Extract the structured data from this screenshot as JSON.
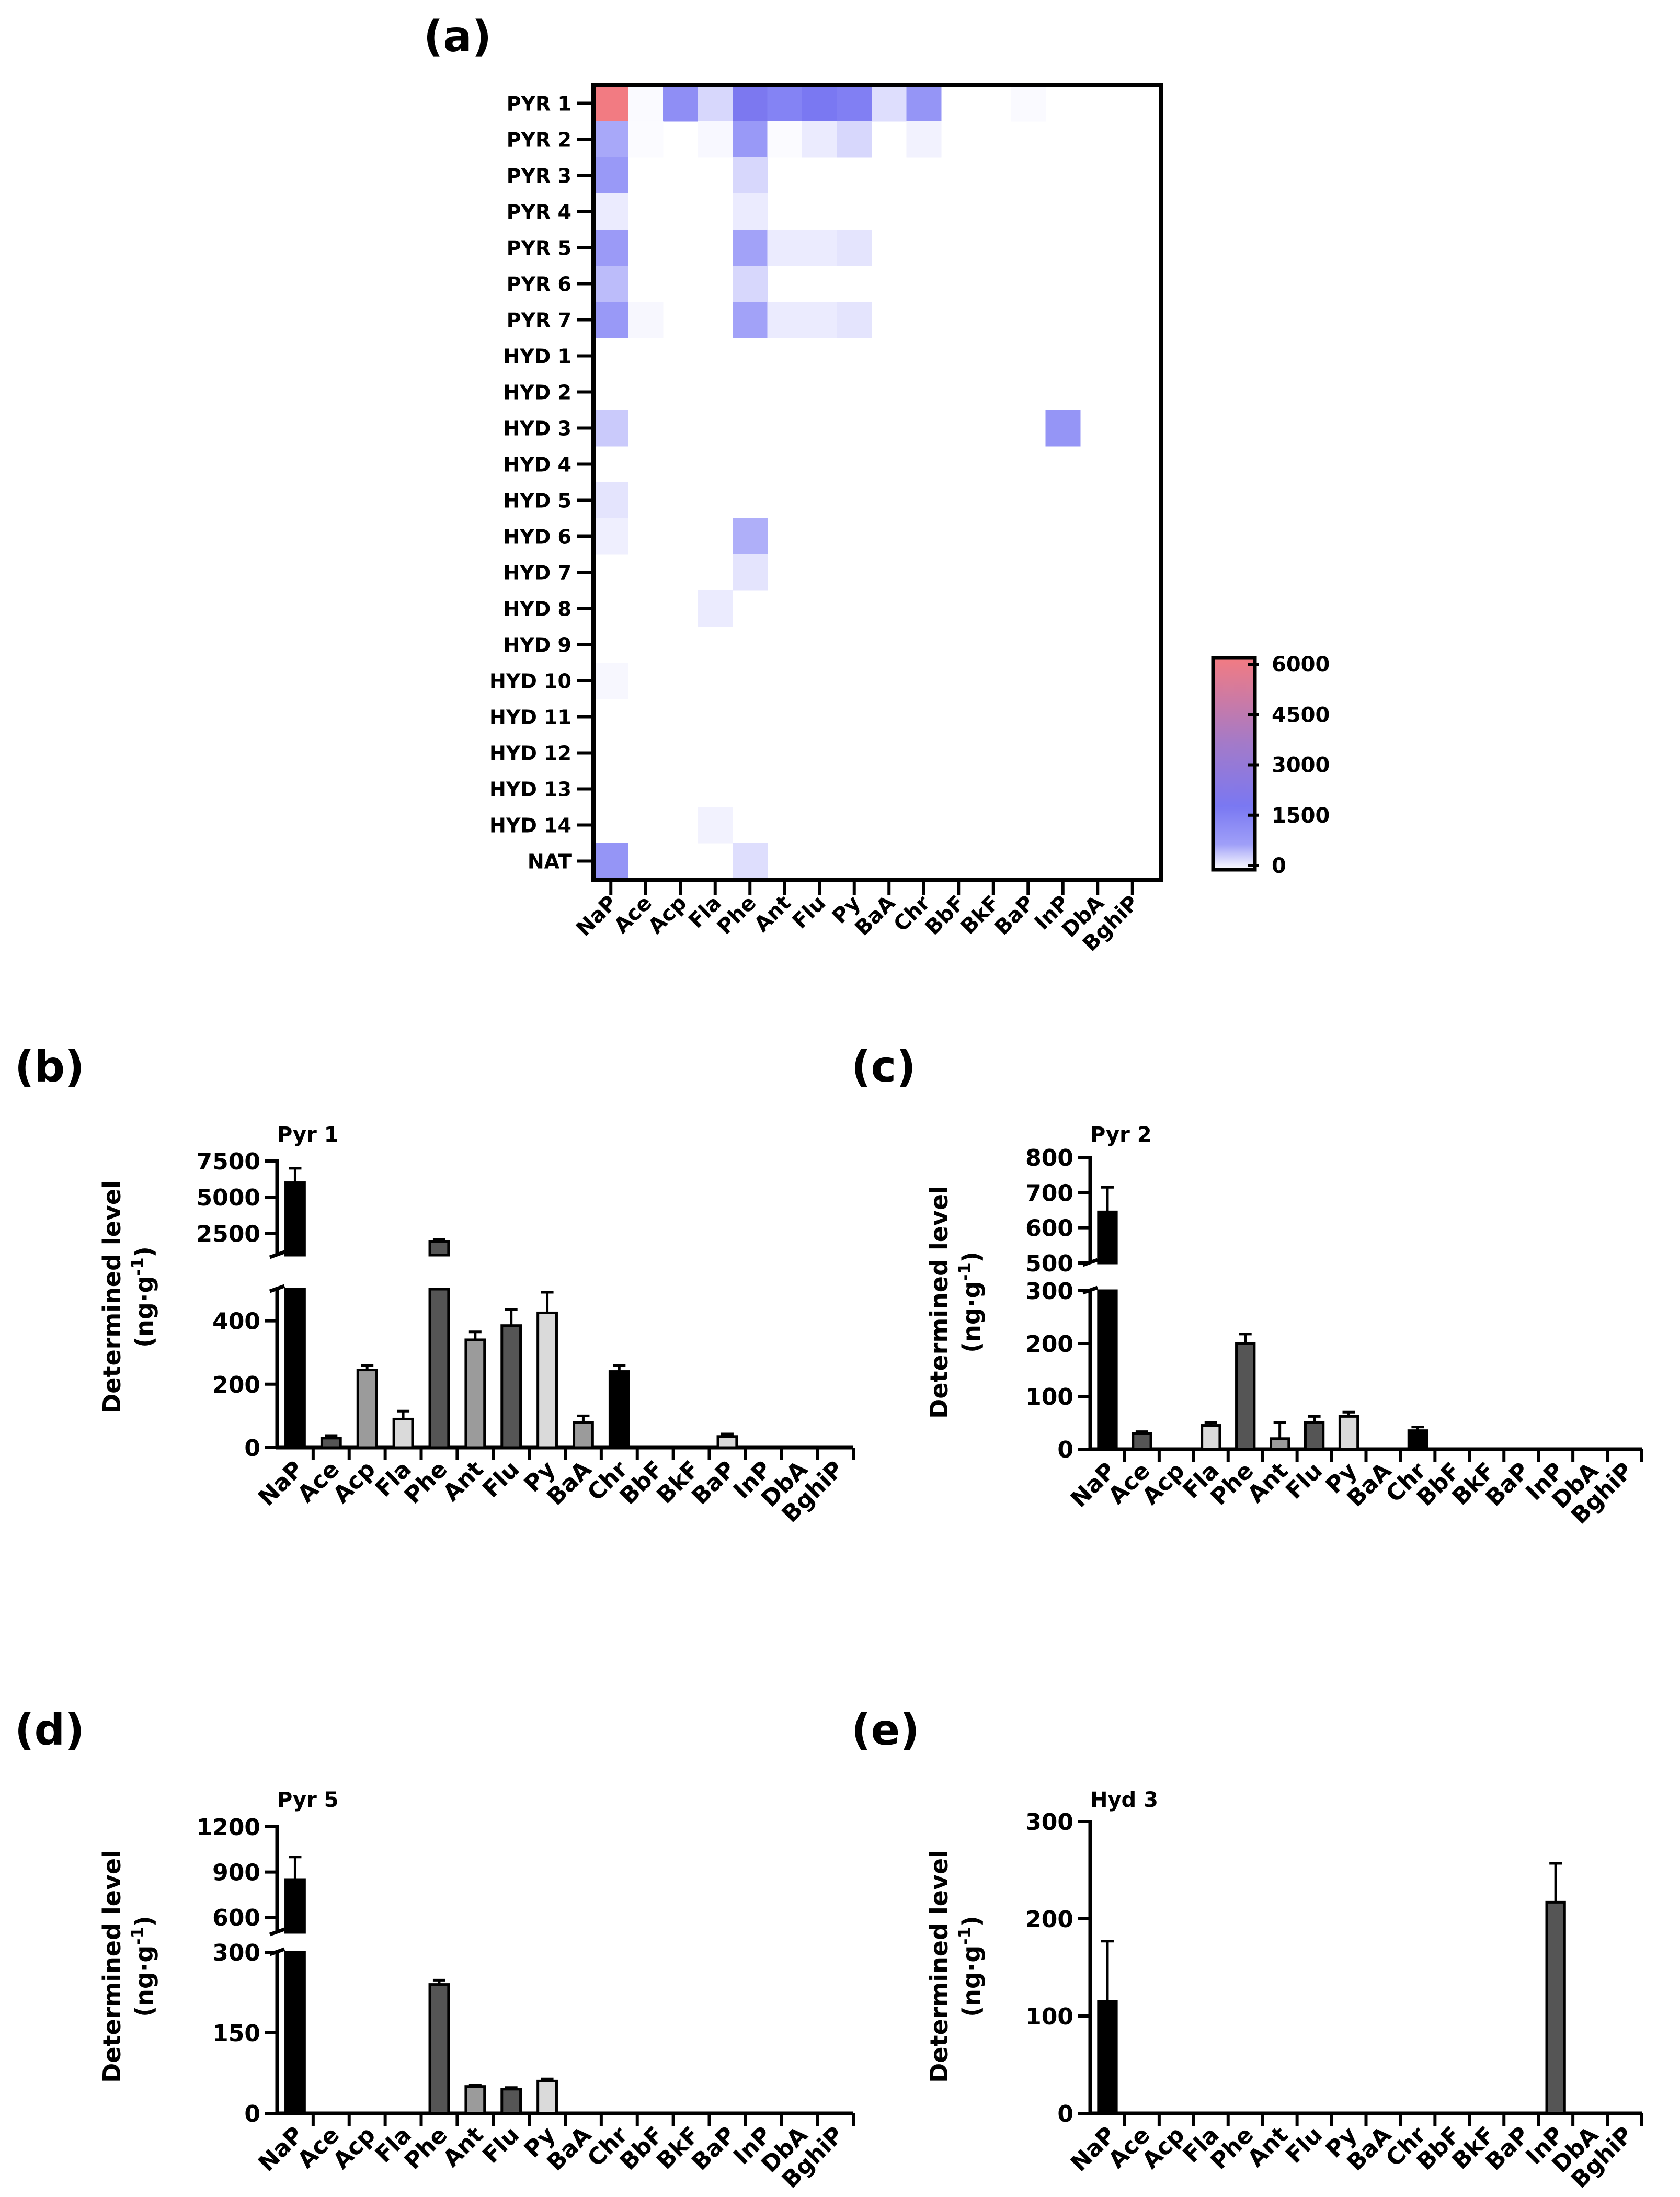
{
  "chart_data": [
    {
      "panel": "(a)",
      "type": "heatmap",
      "rows": [
        "PYR 1",
        "PYR 2",
        "PYR 3",
        "PYR 4",
        "PYR 5",
        "PYR 6",
        "PYR 7",
        "HYD 1",
        "HYD 2",
        "HYD 3",
        "HYD 4",
        "HYD 5",
        "HYD 6",
        "HYD 7",
        "HYD 8",
        "HYD 9",
        "HYD 10",
        "HYD 11",
        "HYD 12",
        "HYD 13",
        "HYD 14",
        "NAT"
      ],
      "columns": [
        "NaP",
        "Ace",
        "Acp",
        "Fla",
        "Phe",
        "Ant",
        "Flu",
        "Py",
        "BaA",
        "Chr",
        "BbF",
        "BkF",
        "BaP",
        "InP",
        "DbA",
        "BghiP"
      ],
      "values": [
        [
          6000,
          40,
          1200,
          300,
          1900,
          1500,
          1800,
          1600,
          250,
          1000,
          0,
          0,
          40,
          0,
          0,
          0
        ],
        [
          650,
          30,
          0,
          50,
          900,
          30,
          150,
          300,
          0,
          100,
          0,
          0,
          0,
          0,
          0,
          0
        ],
        [
          900,
          0,
          0,
          0,
          300,
          0,
          0,
          0,
          0,
          0,
          0,
          0,
          0,
          0,
          0,
          0
        ],
        [
          150,
          0,
          0,
          0,
          150,
          0,
          0,
          0,
          0,
          0,
          0,
          0,
          0,
          0,
          0,
          0
        ],
        [
          850,
          0,
          0,
          0,
          700,
          150,
          150,
          200,
          0,
          0,
          0,
          0,
          0,
          0,
          0,
          0
        ],
        [
          500,
          0,
          0,
          0,
          300,
          0,
          0,
          0,
          0,
          0,
          0,
          0,
          0,
          0,
          0,
          0
        ],
        [
          900,
          60,
          0,
          0,
          700,
          150,
          150,
          200,
          0,
          0,
          0,
          0,
          0,
          0,
          0,
          0
        ],
        [
          0,
          0,
          0,
          0,
          0,
          0,
          0,
          0,
          0,
          0,
          0,
          0,
          0,
          0,
          0,
          0
        ],
        [
          0,
          0,
          0,
          0,
          0,
          0,
          0,
          0,
          0,
          0,
          0,
          0,
          0,
          0,
          0,
          0
        ],
        [
          400,
          0,
          0,
          0,
          0,
          0,
          0,
          0,
          0,
          0,
          0,
          0,
          0,
          1000,
          0,
          0
        ],
        [
          0,
          0,
          0,
          0,
          0,
          0,
          0,
          0,
          0,
          0,
          0,
          0,
          0,
          0,
          0,
          0
        ],
        [
          200,
          0,
          0,
          0,
          0,
          0,
          0,
          0,
          0,
          0,
          0,
          0,
          0,
          0,
          0,
          0
        ],
        [
          120,
          0,
          0,
          0,
          600,
          0,
          0,
          0,
          0,
          0,
          0,
          0,
          0,
          0,
          0,
          0
        ],
        [
          0,
          0,
          0,
          0,
          200,
          0,
          0,
          0,
          0,
          0,
          0,
          0,
          0,
          0,
          0,
          0
        ],
        [
          0,
          0,
          0,
          150,
          0,
          0,
          0,
          0,
          0,
          0,
          0,
          0,
          0,
          0,
          0,
          0
        ],
        [
          0,
          0,
          0,
          0,
          0,
          0,
          0,
          0,
          0,
          0,
          0,
          0,
          0,
          0,
          0,
          0
        ],
        [
          60,
          0,
          0,
          0,
          0,
          0,
          0,
          0,
          0,
          0,
          0,
          0,
          0,
          0,
          0,
          0
        ],
        [
          0,
          0,
          0,
          0,
          0,
          0,
          0,
          0,
          0,
          0,
          0,
          0,
          0,
          0,
          0,
          0
        ],
        [
          0,
          0,
          0,
          0,
          0,
          0,
          0,
          0,
          0,
          0,
          0,
          0,
          0,
          0,
          0,
          0
        ],
        [
          0,
          0,
          0,
          0,
          0,
          0,
          0,
          0,
          0,
          0,
          0,
          0,
          0,
          0,
          0,
          0
        ],
        [
          0,
          0,
          0,
          100,
          0,
          0,
          0,
          0,
          0,
          0,
          0,
          0,
          0,
          0,
          0,
          0
        ],
        [
          1000,
          0,
          0,
          0,
          250,
          0,
          0,
          0,
          0,
          0,
          0,
          0,
          0,
          0,
          0,
          0
        ]
      ],
      "colorbar": {
        "min": 0,
        "max": 6000,
        "ticks": [
          "0",
          "1500",
          "3000",
          "4500",
          "6000"
        ],
        "colors": [
          "#ffffff",
          "#6e6ef5",
          "#f27b82"
        ]
      }
    },
    {
      "panel": "(b)",
      "type": "bar",
      "title": "Pyr 1",
      "ylabel": "Determined level",
      "yunit": "(ng·g",
      "yunit_sup": "-1",
      "yunit_end": ")",
      "categories": [
        "NaP",
        "Ace",
        "Acp",
        "Fla",
        "Phe",
        "Ant",
        "Flu",
        "Py",
        "BaA",
        "Chr",
        "BbF",
        "BkF",
        "BaP",
        "InP",
        "DbA",
        "BghiP"
      ],
      "values": [
        6000,
        30,
        245,
        90,
        1950,
        340,
        385,
        425,
        80,
        240,
        0,
        0,
        35,
        0,
        0,
        0
      ],
      "errors": [
        1000,
        8,
        15,
        25,
        150,
        25,
        50,
        65,
        20,
        20,
        0,
        0,
        8,
        0,
        0,
        0
      ],
      "colors": [
        "#000000",
        "#555555",
        "#9b9b9b",
        "#dadada",
        "#555555",
        "#9b9b9b",
        "#555555",
        "#dadada",
        "#9b9b9b",
        "#000000",
        "#555555",
        "#9b9b9b",
        "#dadada",
        "#555555",
        "#9b9b9b",
        "#dadada"
      ],
      "axis_break": {
        "lower": [
          0,
          500
        ],
        "upper": [
          1000,
          7500
        ]
      },
      "yticks_lower": [
        "0",
        "200",
        "400"
      ],
      "yticks_upper": [
        "2500",
        "5000",
        "7500"
      ]
    },
    {
      "panel": "(c)",
      "type": "bar",
      "title": "Pyr 2",
      "ylabel": "Determined level",
      "yunit": "(ng·g",
      "yunit_sup": "-1",
      "yunit_end": ")",
      "categories": [
        "NaP",
        "Ace",
        "Acp",
        "Fla",
        "Phe",
        "Ant",
        "Flu",
        "Py",
        "BaA",
        "Chr",
        "BbF",
        "BkF",
        "BaP",
        "InP",
        "DbA",
        "BghiP"
      ],
      "values": [
        645,
        30,
        0,
        45,
        200,
        20,
        50,
        62,
        0,
        35,
        0,
        0,
        0,
        0,
        0,
        0
      ],
      "errors": [
        70,
        3,
        0,
        5,
        18,
        30,
        12,
        8,
        0,
        7,
        0,
        0,
        0,
        0,
        0,
        0
      ],
      "colors": [
        "#000000",
        "#555555",
        "#9b9b9b",
        "#dadada",
        "#555555",
        "#9b9b9b",
        "#555555",
        "#dadada",
        "#9b9b9b",
        "#000000",
        "#555555",
        "#9b9b9b",
        "#dadada",
        "#555555",
        "#9b9b9b",
        "#dadada"
      ],
      "axis_break": {
        "lower": [
          0,
          300
        ],
        "upper": [
          500,
          800
        ]
      },
      "yticks_lower": [
        "0",
        "100",
        "200",
        "300"
      ],
      "yticks_upper": [
        "500",
        "600",
        "700",
        "800"
      ]
    },
    {
      "panel": "(d)",
      "type": "bar",
      "title": "Pyr 5",
      "ylabel": "Determined level",
      "yunit": "(ng·g",
      "yunit_sup": "-1",
      "yunit_end": ")",
      "categories": [
        "NaP",
        "Ace",
        "Acp",
        "Fla",
        "Phe",
        "Ant",
        "Flu",
        "Py",
        "BaA",
        "Chr",
        "BbF",
        "BkF",
        "BaP",
        "InP",
        "DbA",
        "BghiP"
      ],
      "values": [
        850,
        0,
        0,
        0,
        240,
        50,
        45,
        60,
        0,
        0,
        0,
        0,
        0,
        0,
        0,
        0
      ],
      "errors": [
        150,
        0,
        0,
        0,
        8,
        3,
        3,
        4,
        0,
        0,
        0,
        0,
        0,
        0,
        0,
        0
      ],
      "colors": [
        "#000000",
        "#555555",
        "#9b9b9b",
        "#dadada",
        "#555555",
        "#9b9b9b",
        "#555555",
        "#dadada",
        "#9b9b9b",
        "#000000",
        "#555555",
        "#9b9b9b",
        "#dadada",
        "#555555",
        "#9b9b9b",
        "#dadada"
      ],
      "axis_break": {
        "lower": [
          0,
          300
        ],
        "upper": [
          500,
          1200
        ]
      },
      "yticks_lower": [
        "0",
        "150",
        "300"
      ],
      "yticks_upper": [
        "600",
        "900",
        "1200"
      ]
    },
    {
      "panel": "(e)",
      "type": "bar",
      "title": "Hyd 3",
      "ylabel": "Determined level",
      "yunit": "(ng·g",
      "yunit_sup": "-1",
      "yunit_end": ")",
      "categories": [
        "NaP",
        "Ace",
        "Acp",
        "Fla",
        "Phe",
        "Ant",
        "Flu",
        "Py",
        "BaA",
        "Chr",
        "BbF",
        "BkF",
        "BaP",
        "InP",
        "DbA",
        "BghiP"
      ],
      "values": [
        115,
        0,
        0,
        0,
        0,
        0,
        0,
        0,
        0,
        0,
        0,
        0,
        0,
        217,
        0,
        0
      ],
      "errors": [
        62,
        0,
        0,
        0,
        0,
        0,
        0,
        0,
        0,
        0,
        0,
        0,
        0,
        40,
        0,
        0
      ],
      "colors": [
        "#000000",
        "#555555",
        "#9b9b9b",
        "#dadada",
        "#555555",
        "#9b9b9b",
        "#555555",
        "#dadada",
        "#9b9b9b",
        "#000000",
        "#555555",
        "#9b9b9b",
        "#dadada",
        "#555555",
        "#9b9b9b",
        "#dadada"
      ],
      "ylim": [
        0,
        300
      ],
      "yticks": [
        "0",
        "100",
        "200",
        "300"
      ]
    }
  ]
}
